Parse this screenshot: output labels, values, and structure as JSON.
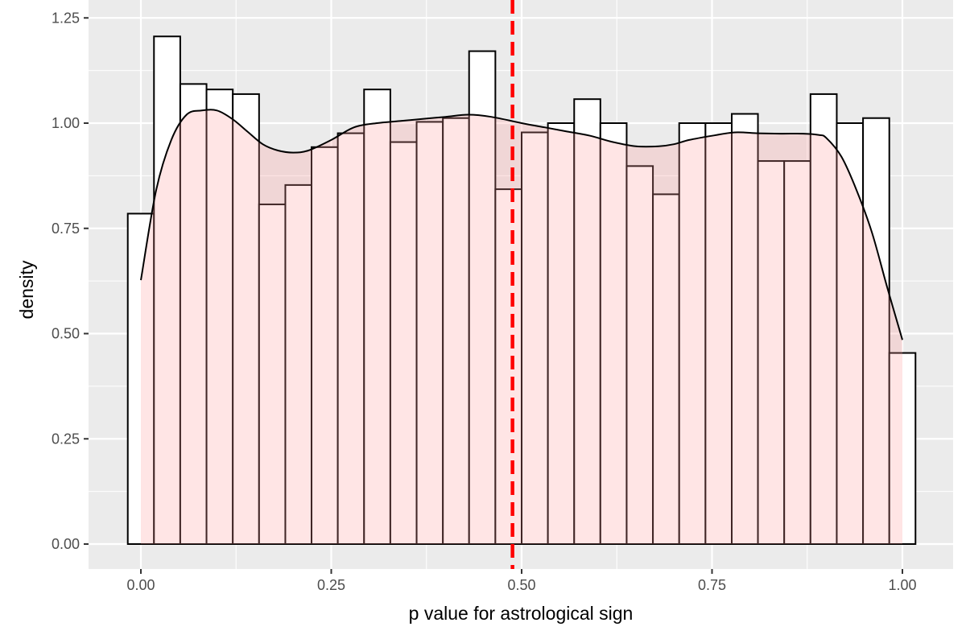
{
  "chart_data": {
    "type": "bar",
    "title": "",
    "xlabel": "p value for astrological sign",
    "ylabel": "density",
    "xlim": [
      -0.04,
      1.04
    ],
    "ylim": [
      -0.065,
      1.26
    ],
    "x_ticks": [
      0.0,
      0.25,
      0.5,
      0.75,
      1.0
    ],
    "x_tick_labels": [
      "0.00",
      "0.25",
      "0.50",
      "0.75",
      "1.00"
    ],
    "y_ticks": [
      0.0,
      0.25,
      0.5,
      0.75,
      1.0,
      1.25
    ],
    "y_tick_labels": [
      "0.00",
      "0.25",
      "0.50",
      "0.75",
      "1.00",
      "1.25"
    ],
    "grid": true,
    "background_color": "#ebebeb",
    "reference_line": {
      "x": 0.488,
      "color": "#ff0000",
      "style": "dashed"
    },
    "series": [
      {
        "kind": "histogram",
        "fill": "#ffffff",
        "stroke": "#000000",
        "bin_width": 0.0345,
        "bins": [
          {
            "x0": -0.0172,
            "x1": 0.0172,
            "density": 0.785
          },
          {
            "x0": 0.0172,
            "x1": 0.0517,
            "density": 1.206
          },
          {
            "x0": 0.0517,
            "x1": 0.0862,
            "density": 1.093
          },
          {
            "x0": 0.0862,
            "x1": 0.1207,
            "density": 1.08
          },
          {
            "x0": 0.1207,
            "x1": 0.1552,
            "density": 1.069
          },
          {
            "x0": 0.1552,
            "x1": 0.1897,
            "density": 0.807
          },
          {
            "x0": 0.1897,
            "x1": 0.2241,
            "density": 0.853
          },
          {
            "x0": 0.2241,
            "x1": 0.2586,
            "density": 0.943
          },
          {
            "x0": 0.2586,
            "x1": 0.2931,
            "density": 0.976
          },
          {
            "x0": 0.2931,
            "x1": 0.3276,
            "density": 1.08
          },
          {
            "x0": 0.3276,
            "x1": 0.3621,
            "density": 0.955
          },
          {
            "x0": 0.3621,
            "x1": 0.3966,
            "density": 1.003
          },
          {
            "x0": 0.3966,
            "x1": 0.431,
            "density": 1.012
          },
          {
            "x0": 0.431,
            "x1": 0.4655,
            "density": 1.171
          },
          {
            "x0": 0.4655,
            "x1": 0.5,
            "density": 0.843
          },
          {
            "x0": 0.5,
            "x1": 0.5345,
            "density": 0.978
          },
          {
            "x0": 0.5345,
            "x1": 0.569,
            "density": 1.0
          },
          {
            "x0": 0.569,
            "x1": 0.6034,
            "density": 1.057
          },
          {
            "x0": 0.6034,
            "x1": 0.6379,
            "density": 1.0
          },
          {
            "x0": 0.6379,
            "x1": 0.6724,
            "density": 0.898
          },
          {
            "x0": 0.6724,
            "x1": 0.7069,
            "density": 0.831
          },
          {
            "x0": 0.7069,
            "x1": 0.7414,
            "density": 1.0
          },
          {
            "x0": 0.7414,
            "x1": 0.7759,
            "density": 1.0
          },
          {
            "x0": 0.7759,
            "x1": 0.8103,
            "density": 1.022
          },
          {
            "x0": 0.8103,
            "x1": 0.8448,
            "density": 0.91
          },
          {
            "x0": 0.8448,
            "x1": 0.8793,
            "density": 0.91
          },
          {
            "x0": 0.8793,
            "x1": 0.9138,
            "density": 1.069
          },
          {
            "x0": 0.9138,
            "x1": 0.9483,
            "density": 1.0
          },
          {
            "x0": 0.9483,
            "x1": 0.9828,
            "density": 1.012
          },
          {
            "x0": 0.9828,
            "x1": 1.0172,
            "density": 0.454
          }
        ]
      },
      {
        "kind": "density",
        "fill": "#ff9999",
        "fill_opacity": 0.25,
        "stroke": "#000000",
        "x": [
          0.0,
          0.02,
          0.04,
          0.06,
          0.08,
          0.1,
          0.12,
          0.14,
          0.16,
          0.18,
          0.2,
          0.22,
          0.25,
          0.28,
          0.31,
          0.34,
          0.37,
          0.4,
          0.43,
          0.46,
          0.5,
          0.53,
          0.56,
          0.59,
          0.62,
          0.65,
          0.68,
          0.7,
          0.72,
          0.75,
          0.78,
          0.81,
          0.84,
          0.87,
          0.89,
          0.9,
          0.92,
          0.94,
          0.96,
          0.98,
          1.0
        ],
        "y": [
          0.627,
          0.84,
          0.96,
          1.02,
          1.03,
          1.03,
          1.01,
          0.98,
          0.95,
          0.935,
          0.93,
          0.935,
          0.96,
          0.99,
          1.0,
          1.005,
          1.01,
          1.015,
          1.02,
          1.015,
          1.0,
          0.99,
          0.98,
          0.97,
          0.955,
          0.945,
          0.945,
          0.95,
          0.96,
          0.97,
          0.978,
          0.976,
          0.975,
          0.975,
          0.972,
          0.965,
          0.92,
          0.84,
          0.74,
          0.61,
          0.485
        ]
      }
    ]
  }
}
